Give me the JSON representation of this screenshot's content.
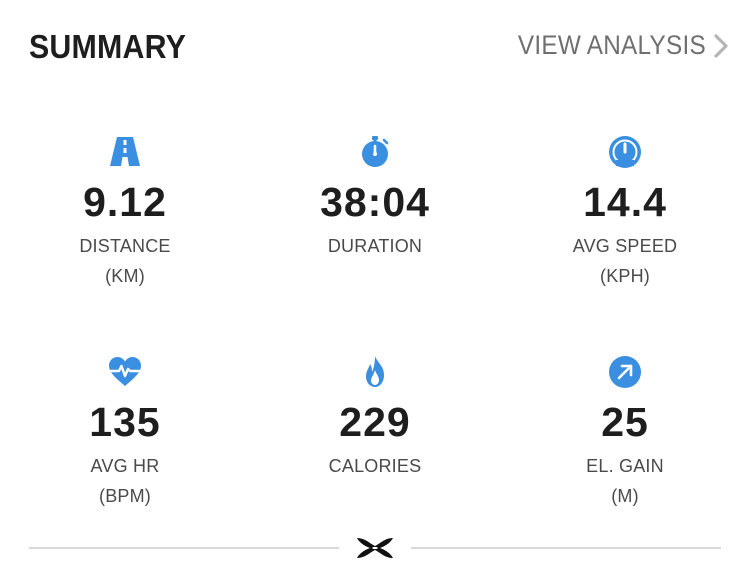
{
  "header": {
    "title": "SUMMARY",
    "view_analysis_label": "VIEW ANALYSIS",
    "view_analysis_icon": "chevron-right-icon"
  },
  "colors": {
    "accent_blue": "#3a8fe0",
    "text_dark": "#1e1e1e",
    "text_muted": "#4a4a4a",
    "link_gray": "#6f6f6f",
    "divider": "#d9d9d9"
  },
  "stats": [
    {
      "icon": "road-icon",
      "value": "9.12",
      "label": "DISTANCE",
      "unit": "(KM)"
    },
    {
      "icon": "stopwatch-icon",
      "value": "38:04",
      "label": "DURATION",
      "unit": ""
    },
    {
      "icon": "speedometer-icon",
      "value": "14.4",
      "label": "AVG SPEED",
      "unit": "(KPH)"
    },
    {
      "icon": "heart-rate-icon",
      "value": "135",
      "label": "AVG HR",
      "unit": "(BPM)"
    },
    {
      "icon": "flame-icon",
      "value": "229",
      "label": "CALORIES",
      "unit": ""
    },
    {
      "icon": "elevation-arrow-icon",
      "value": "25",
      "label": "EL. GAIN",
      "unit": "(M)"
    }
  ],
  "footer": {
    "logo_icon": "under-armour-logo-icon"
  }
}
